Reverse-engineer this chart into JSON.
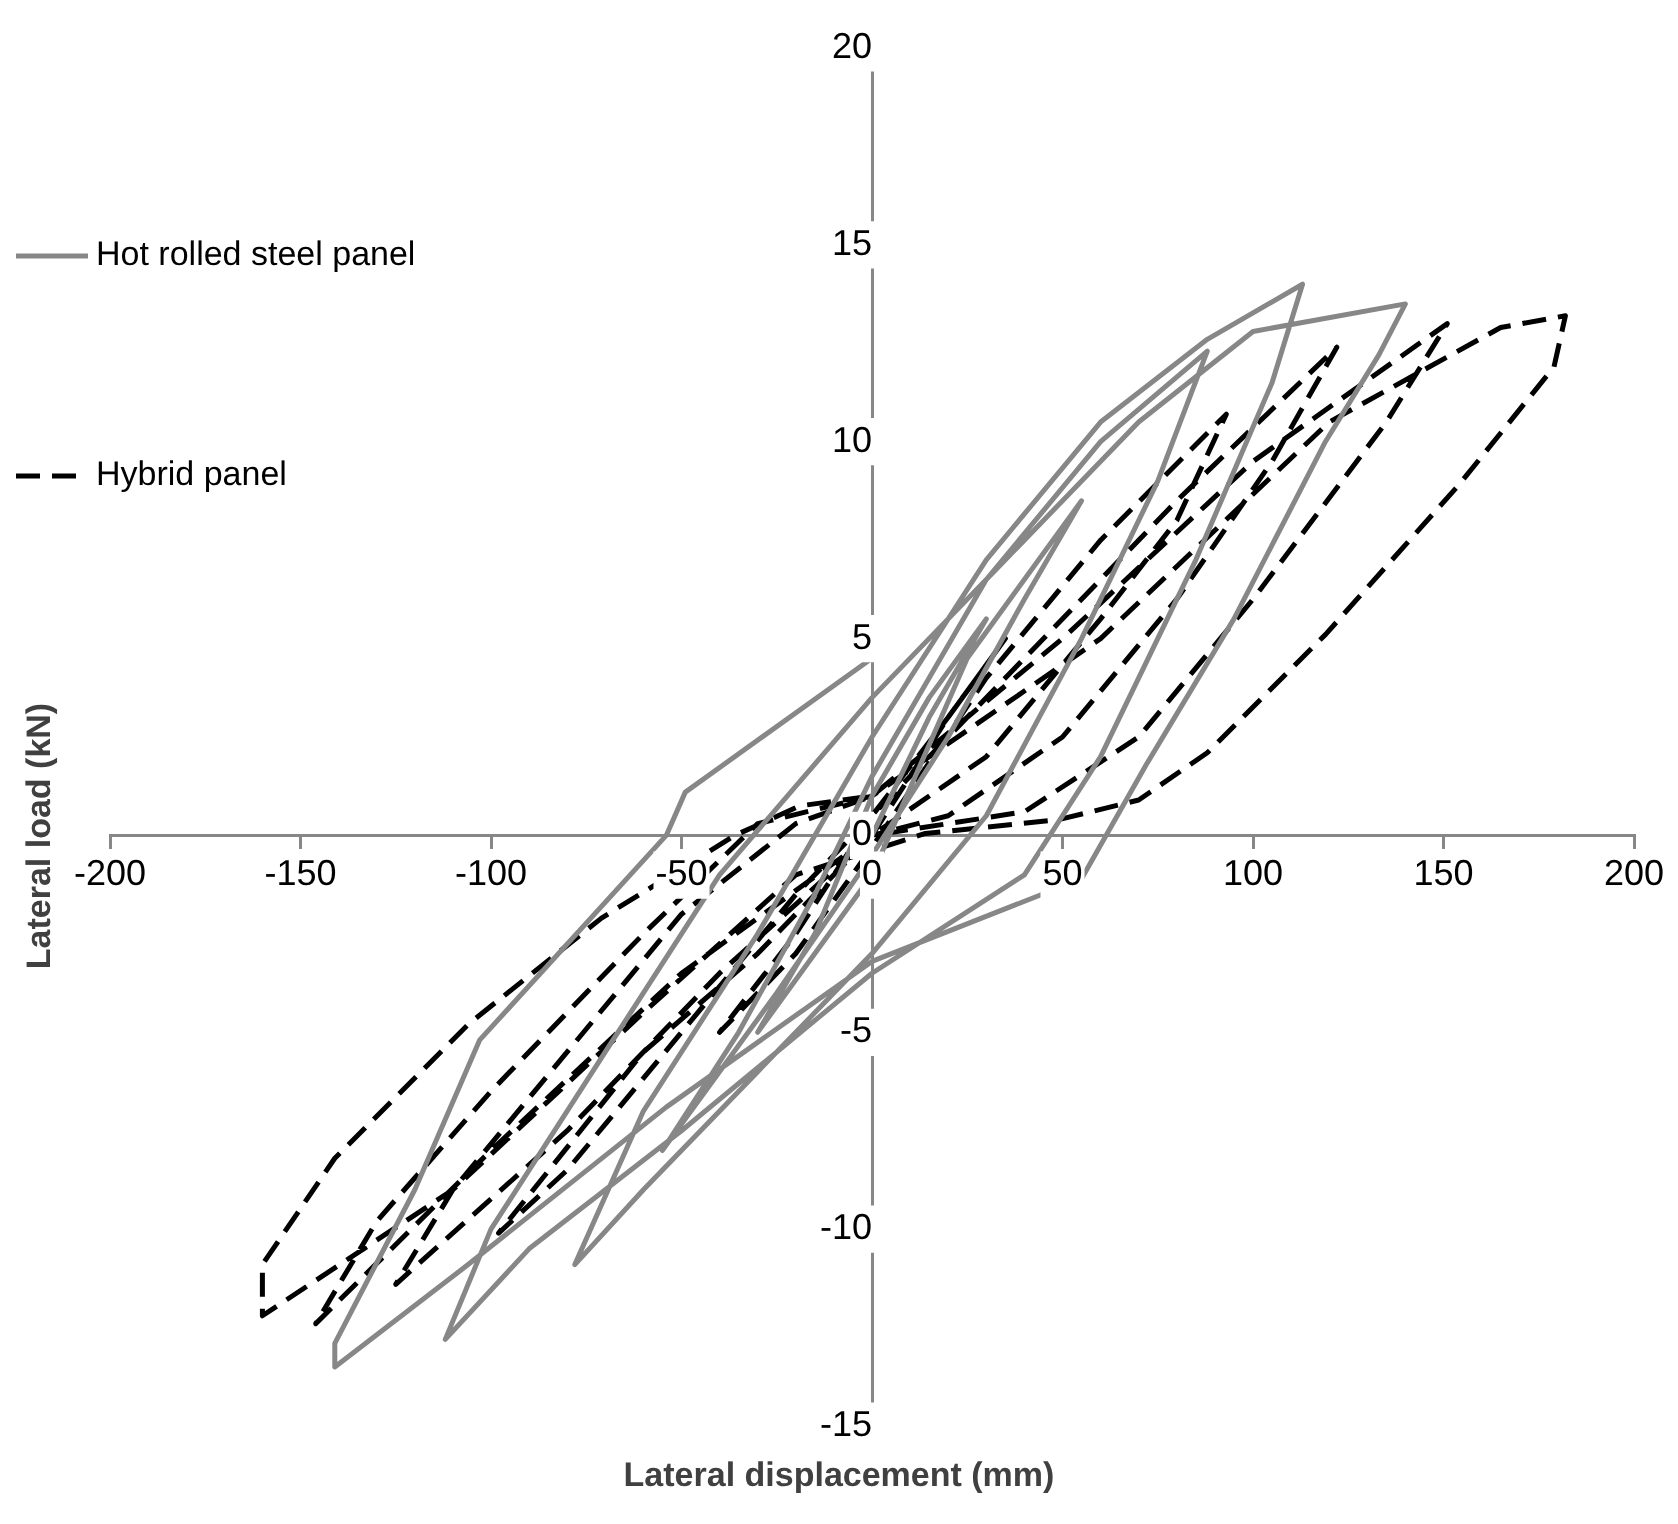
{
  "chart_data": {
    "type": "line",
    "xlabel": "Lateral displacement (mm)",
    "ylabel": "Lateral load (kN)",
    "xlim": [
      -200,
      200
    ],
    "xticks": [
      -200,
      -150,
      -100,
      -50,
      0,
      50,
      100,
      150,
      200
    ],
    "ylim": [
      -15,
      20
    ],
    "yticks": [
      -15,
      -10,
      -5,
      0,
      5,
      10,
      15,
      20
    ],
    "grid": false,
    "legend": "top left",
    "marker": "none",
    "series": [
      {
        "name": "Hot rolled steel panel",
        "color": "#878787",
        "line_style": "solid",
        "x": [
          0,
          15,
          30,
          15,
          0,
          -15,
          -30,
          -15,
          0,
          25,
          55,
          40,
          20,
          0,
          -25,
          -55,
          -35,
          -15,
          0,
          30,
          60,
          88,
          75,
          55,
          30,
          0,
          -30,
          -60,
          -78,
          -60,
          -30,
          0,
          30,
          60,
          88,
          113,
          105,
          85,
          60,
          40,
          0,
          -50,
          -90,
          -112,
          -100,
          -70,
          -40,
          0,
          34,
          70,
          100,
          140,
          133,
          119,
          95,
          72,
          55,
          0,
          -54,
          -106,
          -141,
          -141,
          -120,
          -103,
          -54,
          -49,
          0
        ],
        "values": [
          0,
          3,
          5.5,
          3.5,
          1,
          -2.5,
          -5,
          -3,
          -1,
          4.5,
          8.5,
          6,
          2.5,
          -0.5,
          -4,
          -8,
          -5,
          -1.5,
          1.5,
          6.5,
          10,
          12.3,
          9,
          5,
          0.5,
          -3,
          -6,
          -9,
          -10.9,
          -7,
          -2.5,
          2.5,
          7,
          10.5,
          12.6,
          14,
          11.5,
          7,
          2,
          -1,
          -3.5,
          -7.5,
          -10.5,
          -12.8,
          -10,
          -5.5,
          -1,
          3.5,
          6.9,
          10.5,
          12.8,
          13.5,
          12.2,
          10,
          5.5,
          1.8,
          -1.1,
          -3.2,
          -6.9,
          -10.9,
          -13.5,
          -12.9,
          -9,
          -5.2,
          0,
          1.1,
          4.5
        ]
      },
      {
        "name": "Hybrid panel",
        "color": "#000000",
        "line_style": "dashed",
        "x": [
          0,
          20,
          35,
          20,
          0,
          -20,
          -40,
          -20,
          0,
          30,
          60,
          93,
          80,
          60,
          30,
          0,
          -30,
          -60,
          -98,
          -80,
          -50,
          -20,
          0,
          40,
          80,
          122,
          105,
          80,
          50,
          20,
          0,
          -40,
          -80,
          -125,
          -110,
          -80,
          -50,
          -20,
          0,
          50,
          100,
          151,
          135,
          100,
          70,
          40,
          0,
          -50,
          -100,
          -146,
          -130,
          -100,
          -60,
          -30,
          0,
          60,
          120,
          165,
          182,
          179,
          154,
          119,
          88,
          70,
          49,
          14,
          -20,
          -60,
          -110,
          -160,
          -160,
          -141,
          -106,
          -71,
          -36,
          -19,
          0
        ],
        "values": [
          0,
          3,
          5,
          3,
          0.5,
          -2.5,
          -5,
          -3,
          -0.3,
          4,
          7.5,
          10.7,
          8,
          5.5,
          2,
          0,
          -3,
          -5.5,
          -10.1,
          -8.5,
          -5,
          -1.5,
          0.5,
          4.5,
          8.5,
          12.4,
          9.5,
          6,
          2.5,
          0.5,
          0,
          -3.5,
          -7.5,
          -11.4,
          -9,
          -5.5,
          -2,
          0.3,
          1,
          5,
          9.5,
          13,
          10.5,
          6,
          2.5,
          0.6,
          0,
          -3.5,
          -8,
          -12.4,
          -9.8,
          -6.5,
          -2.5,
          0.3,
          1,
          5,
          10.5,
          12.9,
          13.2,
          11.9,
          8.9,
          5.1,
          2.1,
          0.9,
          0.4,
          0.05,
          -1,
          -4.5,
          -9,
          -12.2,
          -10.9,
          -8.2,
          -4.8,
          -2.1,
          0,
          0.75,
          1
        ]
      }
    ]
  }
}
